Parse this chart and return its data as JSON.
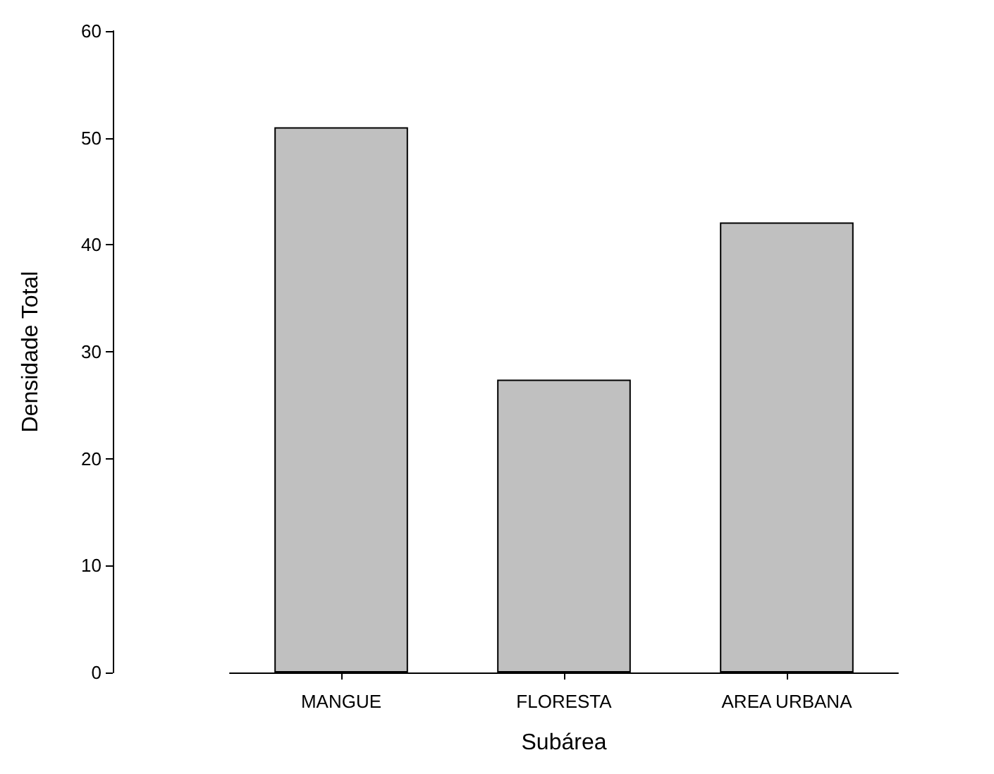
{
  "chart_data": {
    "type": "bar",
    "xlabel": "Subárea",
    "ylabel": "Densidade Total",
    "categories": [
      "MANGUE",
      "FLORESTA",
      "AREA URBANA"
    ],
    "values": [
      51.0,
      27.4,
      42.1
    ],
    "color": "#c0c0c0",
    "ylim": [
      0,
      60
    ],
    "yticks": [
      0,
      10,
      20,
      30,
      40,
      50,
      60
    ]
  }
}
